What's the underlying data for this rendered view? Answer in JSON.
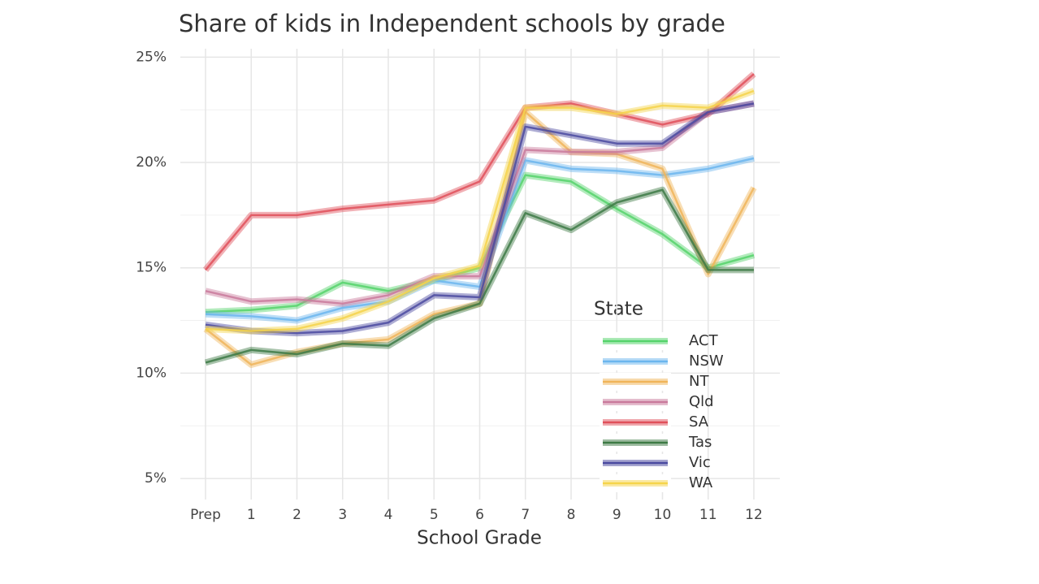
{
  "chart_data": {
    "type": "line",
    "title": "Share of kids in Independent schools by grade",
    "x_label": "School Grade",
    "legend_title": "State",
    "categories": [
      "Prep",
      "1",
      "2",
      "3",
      "4",
      "5",
      "6",
      "7",
      "8",
      "9",
      "10",
      "11",
      "12"
    ],
    "ylim": [
      4,
      25.4
    ],
    "yticks": [
      {
        "value": 5,
        "label": "5%"
      },
      {
        "value": 10,
        "label": "10%"
      },
      {
        "value": 15,
        "label": "15%"
      },
      {
        "value": 20,
        "label": "20%"
      },
      {
        "value": 25,
        "label": "25%"
      }
    ],
    "minor_yticks": [
      7.5,
      12.5,
      17.5,
      22.5
    ],
    "grid": true,
    "series": [
      {
        "name": "ACT",
        "color": "#55d36b",
        "values": [
          12.9,
          13.0,
          13.2,
          14.3,
          13.9,
          14.4,
          15.0,
          19.4,
          19.1,
          17.8,
          16.6,
          15.0,
          15.6
        ]
      },
      {
        "name": "NSW",
        "color": "#6cb6ee",
        "values": [
          12.8,
          12.7,
          12.5,
          13.1,
          13.4,
          14.4,
          14.1,
          20.1,
          19.7,
          19.6,
          19.4,
          19.7,
          20.2
        ]
      },
      {
        "name": "NT",
        "color": "#f0b55a",
        "values": [
          12.1,
          10.4,
          11.0,
          11.4,
          11.6,
          12.8,
          13.3,
          22.4,
          20.5,
          20.4,
          19.7,
          14.7,
          18.8
        ]
      },
      {
        "name": "Qld",
        "color": "#c97a9c",
        "values": [
          13.9,
          13.4,
          13.5,
          13.3,
          13.7,
          14.6,
          14.6,
          20.6,
          20.5,
          20.5,
          20.7,
          22.4,
          22.8
        ]
      },
      {
        "name": "SA",
        "color": "#e0505a",
        "values": [
          14.9,
          17.5,
          17.5,
          17.8,
          18.0,
          18.2,
          19.1,
          22.6,
          22.8,
          22.3,
          21.8,
          22.3,
          24.2
        ]
      },
      {
        "name": "Tas",
        "color": "#3d7a45",
        "values": [
          10.5,
          11.1,
          10.9,
          11.4,
          11.3,
          12.6,
          13.3,
          17.6,
          16.8,
          18.1,
          18.7,
          14.9,
          14.9
        ]
      },
      {
        "name": "Vic",
        "color": "#4b4aa0",
        "values": [
          12.3,
          12.0,
          11.9,
          12.0,
          12.4,
          13.7,
          13.6,
          21.7,
          21.3,
          20.9,
          20.9,
          22.4,
          22.8
        ]
      },
      {
        "name": "WA",
        "color": "#f5d44b",
        "values": [
          12.1,
          12.0,
          12.1,
          12.6,
          13.4,
          14.5,
          15.1,
          22.6,
          22.6,
          22.3,
          22.7,
          22.6,
          23.4
        ]
      }
    ]
  }
}
